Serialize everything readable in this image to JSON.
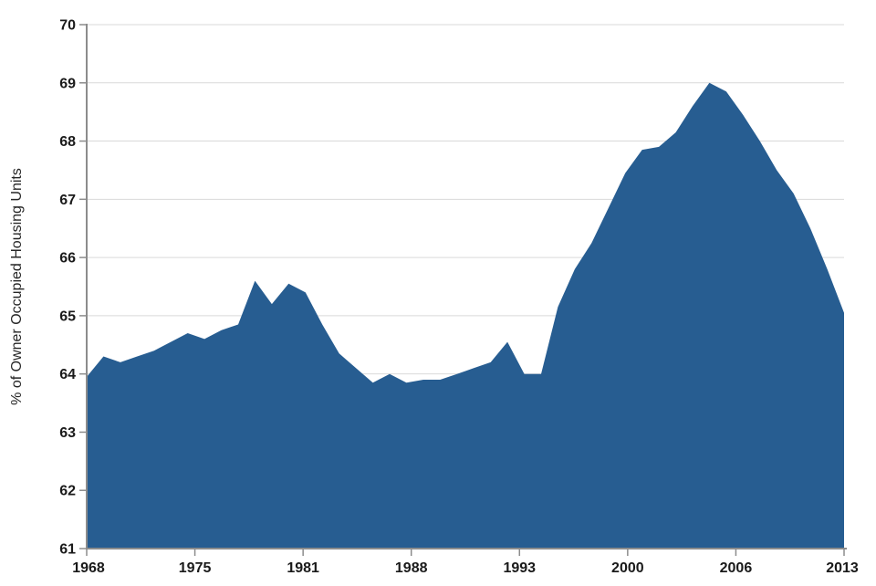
{
  "chart_data": {
    "type": "area",
    "title": "",
    "xlabel": "",
    "ylabel": "% of Owner Occupied Housing Units",
    "series_name": "Percent of owner occupied housing units",
    "x": [
      1968,
      1969,
      1970,
      1971,
      1972,
      1973,
      1974,
      1975,
      1976,
      1977,
      1978,
      1979,
      1980,
      1981,
      1982,
      1983,
      1984,
      1985,
      1986,
      1987,
      1988,
      1989,
      1990,
      1991,
      1992,
      1993,
      1994,
      1995,
      1996,
      1997,
      1998,
      1999,
      2000,
      2001,
      2002,
      2003,
      2004,
      2005,
      2006,
      2007,
      2008,
      2009,
      2010,
      2011,
      2012,
      2013
    ],
    "values": [
      63.95,
      64.3,
      64.2,
      64.3,
      64.4,
      64.55,
      64.7,
      64.6,
      64.75,
      64.85,
      65.6,
      65.2,
      65.55,
      65.4,
      64.85,
      64.35,
      64.1,
      63.85,
      64.0,
      63.85,
      63.9,
      63.9,
      64.0,
      64.1,
      64.2,
      64.55,
      64.0,
      64.0,
      65.15,
      65.8,
      66.25,
      66.85,
      67.45,
      67.85,
      67.9,
      68.15,
      68.6,
      69.0,
      68.85,
      68.45,
      68.0,
      67.5,
      67.1,
      66.5,
      65.8,
      65.05
    ],
    "xlim": [
      1968,
      2013
    ],
    "ylim": [
      61,
      70
    ],
    "ytick_labels": [
      "61",
      "62",
      "63",
      "64",
      "65",
      "66",
      "67",
      "68",
      "69",
      "70"
    ],
    "xtick_labels": [
      "1968",
      "1975",
      "1981",
      "1988",
      "1993",
      "2000",
      "2006",
      "2013"
    ],
    "grid": "horizontal",
    "legend": "none",
    "colors": {
      "area_fill": "#275D91",
      "gridline": "#D9D9D9",
      "axis_line": "#8C8C8C",
      "tick_text": "#1A1A1A",
      "axis_title_text": "#262626",
      "background": "#FFFFFF"
    }
  }
}
